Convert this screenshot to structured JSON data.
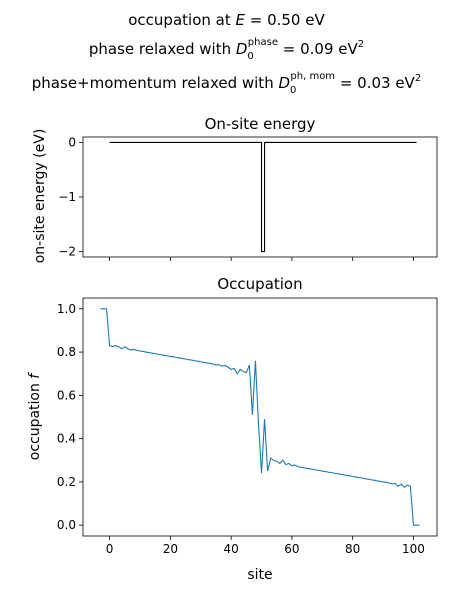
{
  "suptitle": {
    "line1": {
      "pre": "occupation at ",
      "var": "E",
      "post": " = 0.50 eV"
    },
    "line2": {
      "pre": "phase relaxed with ",
      "var": "D",
      "sub": "0",
      "sup": "phase",
      "post": " = 0.09 eV",
      "unit_sup": "2"
    },
    "line3": {
      "pre": "phase+momentum relaxed with ",
      "var": "D",
      "sub": "0",
      "sup": "ph, mom",
      "post": " = 0.03 eV",
      "unit_sup": "2"
    }
  },
  "colors": {
    "top_line": "#000000",
    "bottom_line": "#1f77b4"
  },
  "chart_data": [
    {
      "type": "line",
      "title": "On-site energy",
      "xlabel": "",
      "ylabel": "on-site energy (eV)",
      "xlim": [
        -8.75,
        107.75
      ],
      "ylim": [
        -2.1,
        0.1
      ],
      "xticks": [
        0,
        20,
        40,
        60,
        80,
        100
      ],
      "xtick_labels_shown": false,
      "yticks": [
        0,
        -1,
        -2
      ],
      "ytick_labels": [
        "0",
        "−1",
        "−2"
      ],
      "series": [
        {
          "x": [
            0,
            50,
            50,
            51,
            51,
            101
          ],
          "y": [
            0,
            0,
            -2,
            -2,
            0,
            0
          ]
        }
      ]
    },
    {
      "type": "line",
      "title": "Occupation",
      "xlabel": "site",
      "ylabel": "occupation f",
      "xlim": [
        -8.75,
        107.75
      ],
      "ylim": [
        -0.05,
        1.05
      ],
      "xticks": [
        0,
        20,
        40,
        60,
        80,
        100
      ],
      "xtick_labels": [
        "0",
        "20",
        "40",
        "60",
        "80",
        "100"
      ],
      "yticks": [
        0.0,
        0.2,
        0.4,
        0.6,
        0.8,
        1.0
      ],
      "ytick_labels": [
        "0.0",
        "0.2",
        "0.4",
        "0.6",
        "0.8",
        "1.0"
      ],
      "series": [
        {
          "x": [
            -3,
            -2,
            -1,
            0,
            1,
            2,
            3,
            4,
            5,
            6,
            7,
            8,
            9,
            10,
            11,
            12,
            13,
            14,
            15,
            16,
            17,
            18,
            19,
            20,
            21,
            22,
            23,
            24,
            25,
            26,
            27,
            28,
            29,
            30,
            31,
            32,
            33,
            34,
            35,
            36,
            37,
            38,
            39,
            40,
            41,
            42,
            43,
            44,
            45,
            46,
            47,
            48,
            49,
            50,
            51,
            52,
            53,
            54,
            55,
            56,
            57,
            58,
            59,
            60,
            61,
            62,
            63,
            64,
            65,
            66,
            67,
            68,
            69,
            70,
            71,
            72,
            73,
            74,
            75,
            76,
            77,
            78,
            79,
            80,
            81,
            82,
            83,
            84,
            85,
            86,
            87,
            88,
            89,
            90,
            91,
            92,
            93,
            94,
            95,
            96,
            97,
            98,
            99,
            100,
            101,
            102
          ],
          "y": [
            1.0,
            1.0,
            1.0,
            0.83,
            0.825,
            0.83,
            0.825,
            0.815,
            0.825,
            0.815,
            0.81,
            0.812,
            0.808,
            0.805,
            0.803,
            0.8,
            0.798,
            0.795,
            0.793,
            0.79,
            0.788,
            0.785,
            0.783,
            0.78,
            0.778,
            0.775,
            0.773,
            0.77,
            0.768,
            0.765,
            0.763,
            0.76,
            0.758,
            0.755,
            0.753,
            0.75,
            0.748,
            0.745,
            0.74,
            0.742,
            0.735,
            0.738,
            0.73,
            0.72,
            0.725,
            0.7,
            0.72,
            0.71,
            0.705,
            0.74,
            0.51,
            0.76,
            0.47,
            0.24,
            0.49,
            0.25,
            0.31,
            0.3,
            0.295,
            0.285,
            0.3,
            0.28,
            0.285,
            0.275,
            0.278,
            0.27,
            0.268,
            0.265,
            0.263,
            0.26,
            0.258,
            0.255,
            0.253,
            0.25,
            0.248,
            0.245,
            0.243,
            0.24,
            0.238,
            0.235,
            0.233,
            0.23,
            0.228,
            0.225,
            0.223,
            0.22,
            0.218,
            0.215,
            0.213,
            0.21,
            0.208,
            0.205,
            0.203,
            0.2,
            0.198,
            0.195,
            0.19,
            0.193,
            0.18,
            0.19,
            0.175,
            0.185,
            0.18,
            0.0,
            0.0,
            0.0
          ]
        }
      ]
    }
  ]
}
